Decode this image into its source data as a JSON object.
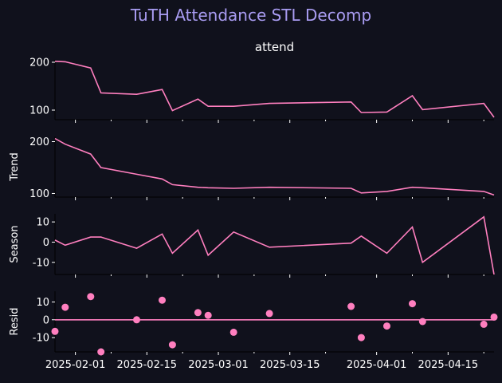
{
  "colors": {
    "background": "#10111c",
    "line": "#ff7fbf",
    "title": "#a99cf2",
    "text": "#ffffff",
    "axis": "#000000"
  },
  "chart_data": {
    "type": "line",
    "title": "TuTH Attendance STL Decomp",
    "dates": [
      "2025-01-28",
      "2025-01-30",
      "2025-02-04",
      "2025-02-06",
      "2025-02-13",
      "2025-02-18",
      "2025-02-20",
      "2025-02-25",
      "2025-02-27",
      "2025-03-04",
      "2025-03-11",
      "2025-03-27",
      "2025-03-29",
      "2025-04-03",
      "2025-04-08",
      "2025-04-10",
      "2025-04-22",
      "2025-04-24"
    ],
    "x_ticks": [
      "2025-02-01",
      "2025-02-15",
      "2025-03-01",
      "2025-03-15",
      "2025-04-01",
      "2025-04-15"
    ],
    "x_tick_minor": [
      "2025-02-08",
      "2025-02-22",
      "2025-03-08",
      "2025-03-22",
      "2025-04-08",
      "2025-04-22"
    ],
    "xlim": [
      "2025-01-28",
      "2025-04-24"
    ],
    "panels": [
      {
        "name": "attend",
        "title": "attend",
        "ylabel": "",
        "ylim": [
          80,
          205
        ],
        "yticks": [
          100,
          200
        ],
        "values": [
          202,
          201,
          188,
          136,
          133,
          143,
          99,
          123,
          108,
          108,
          114,
          117,
          95,
          96,
          130,
          101,
          114,
          85
        ],
        "style": "line"
      },
      {
        "name": "trend",
        "title": "",
        "ylabel": "Trend",
        "ylim": [
          93,
          210
        ],
        "yticks": [
          100,
          200
        ],
        "values": [
          206,
          195,
          176,
          150,
          137,
          128,
          117,
          112,
          111,
          110,
          112,
          110,
          101,
          104,
          112,
          111,
          104,
          97
        ],
        "style": "line"
      },
      {
        "name": "season",
        "title": "",
        "ylabel": "Season",
        "ylim": [
          -16,
          14
        ],
        "yticks": [
          -10,
          0,
          10
        ],
        "values": [
          1,
          -1.5,
          2.5,
          2.5,
          -3,
          4,
          -5.5,
          6,
          -6.5,
          5,
          -2.5,
          -0.5,
          3,
          -5.5,
          7.5,
          -10,
          12.5,
          -16
        ],
        "style": "line"
      },
      {
        "name": "resid",
        "title": "",
        "ylabel": "Resid",
        "ylim": [
          -18,
          16
        ],
        "yticks": [
          -10,
          0,
          10
        ],
        "values": [
          -6.5,
          7,
          13,
          -18,
          0,
          11,
          -14,
          4,
          2.5,
          -7,
          3.5,
          7.5,
          -10,
          -3.5,
          9,
          -1,
          -2.5,
          1.5
        ],
        "style": "scatter",
        "baseline": 0
      }
    ]
  }
}
